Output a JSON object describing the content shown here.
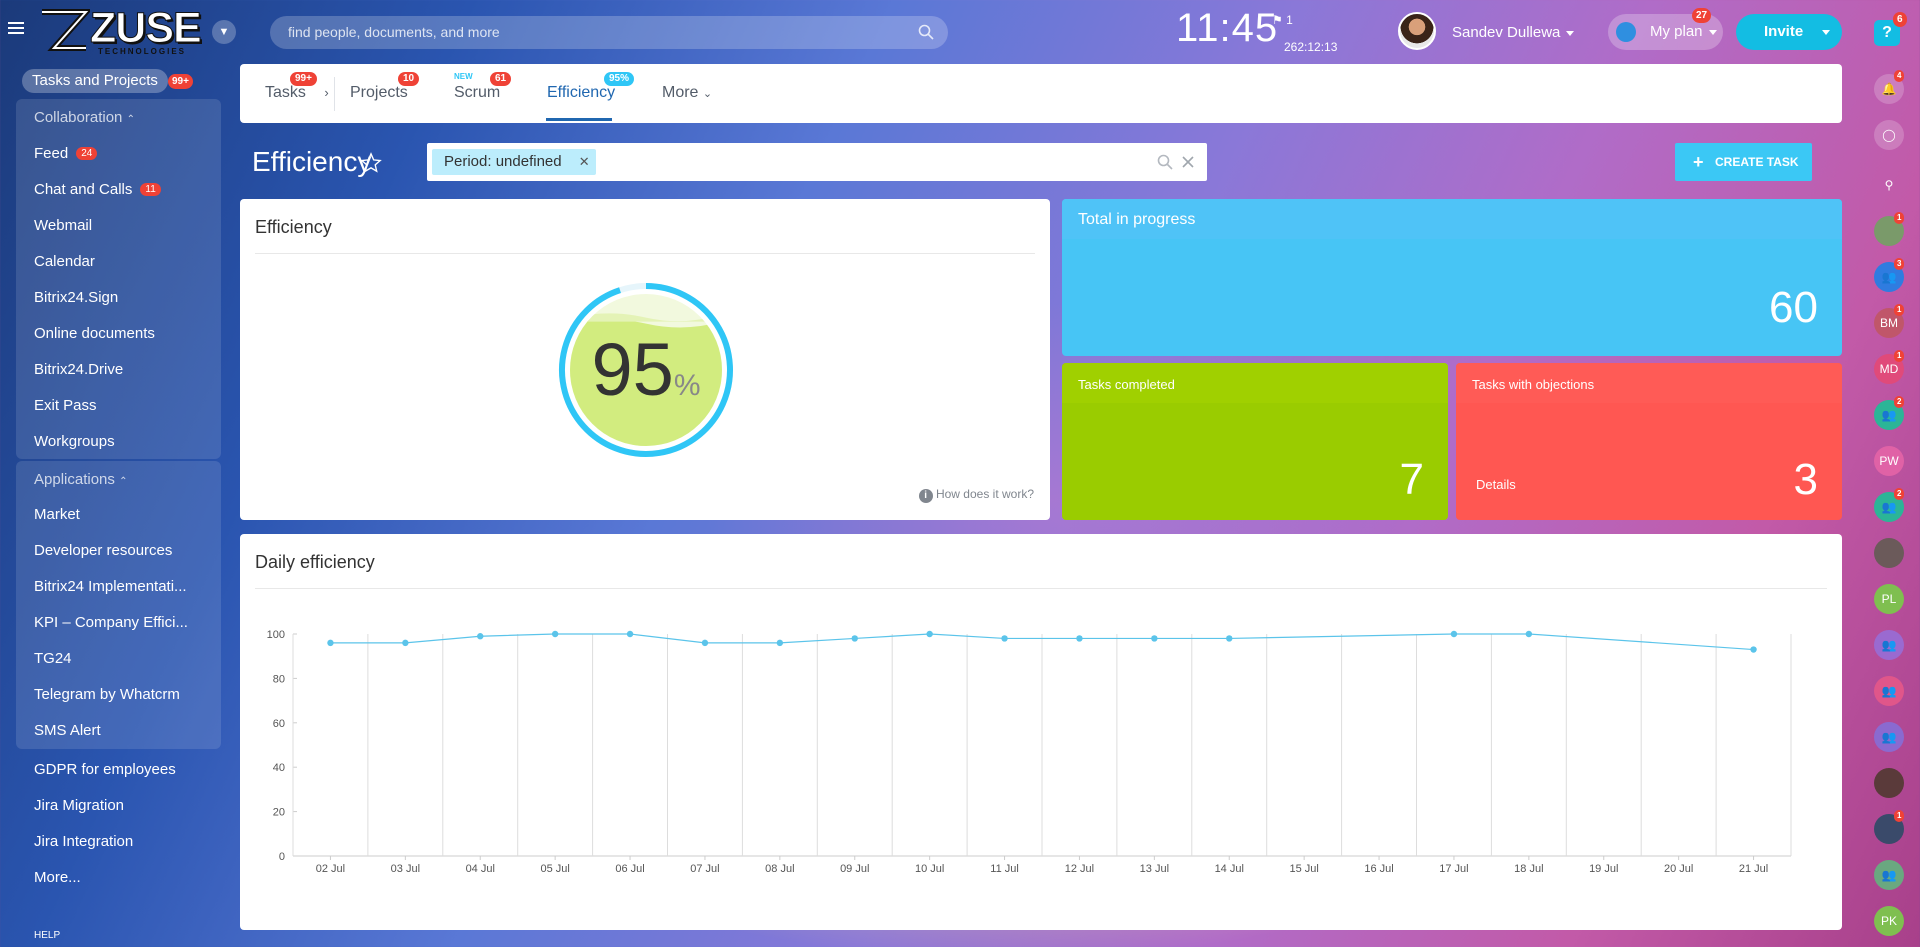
{
  "header": {
    "logo_text": "ZUSE",
    "logo_subtext": "TECHNOLOGIES",
    "search_placeholder": "find people, documents, and more",
    "clock": "11:45",
    "flag_count": "1",
    "timer": "262:12:13",
    "user_name": "Sandev Dullewa",
    "my_plan_label": "My plan",
    "my_plan_badge": "27",
    "invite_label": "Invite",
    "help_badge": "6"
  },
  "left_menu": {
    "top_item": "Tasks and Projects",
    "top_badge": "99+",
    "collaboration_title": "Collaboration",
    "collaboration_items": [
      {
        "label": "Feed",
        "badge": "24"
      },
      {
        "label": "Chat and Calls",
        "badge": "11"
      },
      {
        "label": "Webmail"
      },
      {
        "label": "Calendar"
      },
      {
        "label": "Bitrix24.Sign"
      },
      {
        "label": "Online documents"
      },
      {
        "label": "Bitrix24.Drive"
      },
      {
        "label": "Exit Pass"
      },
      {
        "label": "Workgroups"
      }
    ],
    "applications_title": "Applications",
    "application_items": [
      {
        "label": "Market"
      },
      {
        "label": "Developer resources"
      },
      {
        "label": "Bitrix24 Implementati..."
      },
      {
        "label": "KPI – Company Effici..."
      },
      {
        "label": "TG24"
      },
      {
        "label": "Telegram by Whatcrm"
      },
      {
        "label": "SMS Alert"
      }
    ],
    "other_items": [
      {
        "label": "GDPR for employees"
      },
      {
        "label": "Jira Migration"
      },
      {
        "label": "Jira Integration"
      },
      {
        "label": "More..."
      }
    ],
    "help_label": "HELP"
  },
  "tabs": [
    {
      "label": "Tasks",
      "badge": "99+"
    },
    {
      "label": "Projects",
      "badge": "10"
    },
    {
      "label": "Scrum",
      "badge": "61",
      "new_label": "NEW"
    },
    {
      "label": "Efficiency",
      "badge": "95%"
    },
    {
      "label": "More"
    }
  ],
  "page": {
    "title": "Efficiency",
    "filter_chip": "Period: undefined",
    "create_task_label": "CREATE TASK"
  },
  "efficiency_panel": {
    "title": "Efficiency",
    "value": "95",
    "percent_sign": "%",
    "fill_fraction": 0.95,
    "how_works": "How does it work?"
  },
  "tiles": {
    "total_in_progress": {
      "title": "Total in progress",
      "value": "60",
      "color": "#4fc3f7"
    },
    "completed": {
      "title": "Tasks completed",
      "value": "7",
      "color": "#9ccc00"
    },
    "objections": {
      "title": "Tasks with objections",
      "value": "3",
      "details": "Details",
      "color": "#ff5752"
    }
  },
  "chart_data": {
    "type": "line",
    "title": "Daily efficiency",
    "xlabel": "",
    "ylabel": "",
    "categories": [
      "02 Jul",
      "03 Jul",
      "04 Jul",
      "05 Jul",
      "06 Jul",
      "07 Jul",
      "08 Jul",
      "09 Jul",
      "10 Jul",
      "11 Jul",
      "12 Jul",
      "13 Jul",
      "14 Jul",
      "15 Jul",
      "16 Jul",
      "17 Jul",
      "18 Jul",
      "19 Jul",
      "20 Jul",
      "21 Jul"
    ],
    "values": [
      96,
      96,
      99,
      100,
      100,
      96,
      96,
      98,
      100,
      98,
      98,
      98,
      98,
      null,
      null,
      100,
      100,
      null,
      null,
      93
    ],
    "ylim": [
      0,
      100
    ],
    "yticks": [
      "100",
      "80",
      "60",
      "40",
      "20",
      "0"
    ],
    "line_color": "#5bc4ea",
    "grid": true
  }
}
